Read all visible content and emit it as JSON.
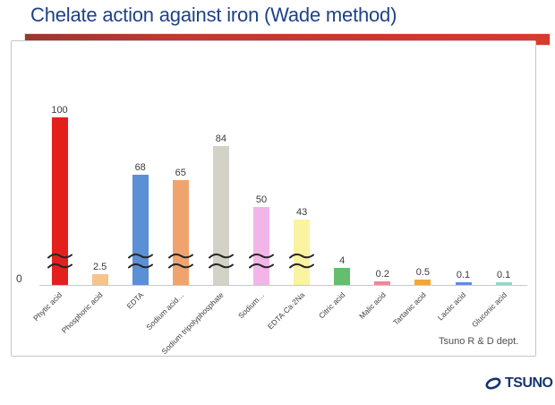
{
  "page": {
    "title": "Chelate action against iron (Wade method)",
    "footer_note": "Tsuno R & D dept.",
    "logo_text": "TSUNO",
    "accent_color": "#c8392c",
    "title_color": "#1f4186"
  },
  "axis": {
    "origin_label": "0"
  },
  "chart_data": {
    "type": "bar",
    "title": "Chelate action against iron (Wade method)",
    "categories": [
      "Phytic acid",
      "Phosphoric acid",
      "EDTA",
      "Sodium acid…",
      "Sodium tripolyphosphate",
      "Sodium…",
      "EDTA·Ca·2Na",
      "Citric acid",
      "Malic acid",
      "Tartanic acid",
      "Lactic acid",
      "Gluconic acid"
    ],
    "values": [
      100,
      2.5,
      68,
      65,
      84,
      50,
      43,
      4,
      0.2,
      0.5,
      0.1,
      0.1
    ],
    "data_labels": [
      "100",
      "2.5",
      "68",
      "65",
      "84",
      "50",
      "43",
      "4",
      "0.2",
      "0.5",
      "0.1",
      "0.1"
    ],
    "bar_colors": [
      "#e3201b",
      "#f6c48e",
      "#5b8fd6",
      "#efa470",
      "#d2d2c6",
      "#f2b5e8",
      "#faf3a0",
      "#64be6e",
      "#f2849c",
      "#f0a836",
      "#5b8fd6",
      "#93d6c8"
    ],
    "axis_break_indices": [
      0,
      2,
      3,
      4,
      5,
      6
    ],
    "xlabel": "",
    "ylabel": "",
    "y_origin_label": "0",
    "grid": false,
    "legend": false,
    "annotation": "Tsuno R & D dept.",
    "notes": "Vertical axis has a break (double tilde marks) on tall bars; only origin value 0 shown on axis"
  }
}
